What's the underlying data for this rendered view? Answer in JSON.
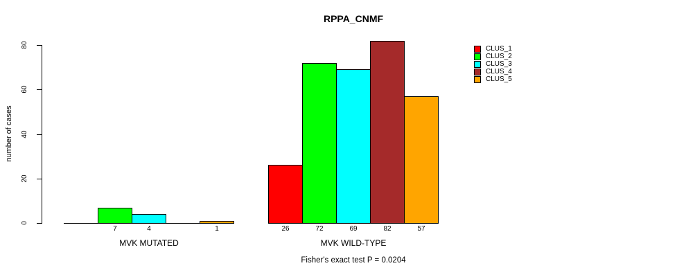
{
  "chart_data": {
    "type": "bar",
    "title": "RPPA_CNMF",
    "ylabel": "number of cases",
    "xlabel": "",
    "ylim": [
      0,
      80
    ],
    "yticks": [
      0,
      20,
      40,
      60,
      80
    ],
    "grid": false,
    "legend_position": "right-top",
    "categories": [
      "MVK MUTATED",
      "MVK WILD-TYPE"
    ],
    "series": [
      {
        "name": "CLUS_1",
        "color": "#FF0000",
        "values": [
          0,
          26
        ]
      },
      {
        "name": "CLUS_2",
        "color": "#00FF00",
        "values": [
          7,
          72
        ]
      },
      {
        "name": "CLUS_3",
        "color": "#00FFFF",
        "values": [
          4,
          69
        ]
      },
      {
        "name": "CLUS_4",
        "color": "#A52A2A",
        "values": [
          0,
          82
        ]
      },
      {
        "name": "CLUS_5",
        "color": "#FFA500",
        "values": [
          1,
          57
        ]
      }
    ],
    "bar_value_labels": {
      "MVK MUTATED": [
        "",
        "7",
        "4",
        "",
        "1"
      ],
      "MVK WILD-TYPE": [
        "26",
        "72",
        "69",
        "82",
        "57"
      ]
    },
    "footnote": "Fisher's exact test P = 0.0204"
  }
}
